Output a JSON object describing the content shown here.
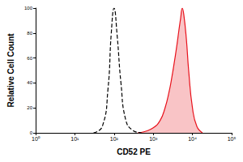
{
  "chart_data": {
    "type": "line",
    "x_label": "CD52 PE",
    "y_label": "Relative Cell Count",
    "log": "x",
    "grid": false,
    "xlim": [
      1,
      100000
    ],
    "xticks": [
      {
        "value": 1,
        "label": "10⁰"
      },
      {
        "value": 10,
        "label": "10¹"
      },
      {
        "value": 100,
        "label": "10²"
      },
      {
        "value": 1000,
        "label": "10³"
      },
      {
        "value": 10000,
        "label": "10⁴"
      },
      {
        "value": 100000,
        "label": "10⁵"
      }
    ],
    "ylim": [
      0,
      100
    ],
    "yticks": [
      0,
      20,
      40,
      60,
      80,
      100
    ],
    "series": [
      {
        "type": "line",
        "line_style": "dashed",
        "color": "#000000",
        "x": [
          30,
          50,
          70,
          85,
          100,
          120,
          150,
          200,
          300,
          500
        ],
        "values": [
          0,
          5,
          35,
          80,
          100,
          78,
          40,
          10,
          2,
          0
        ]
      },
      {
        "type": "area",
        "line_style": "solid",
        "color": "#e8121c",
        "x": [
          400,
          600,
          1000,
          1500,
          2000,
          2500,
          3000,
          3500,
          4000,
          4500,
          5000,
          5500,
          6000,
          7000,
          8000,
          10000,
          13000,
          18000
        ],
        "values": [
          0,
          1,
          4,
          10,
          20,
          32,
          45,
          58,
          70,
          82,
          92,
          100,
          95,
          75,
          50,
          20,
          5,
          0
        ]
      }
    ]
  }
}
